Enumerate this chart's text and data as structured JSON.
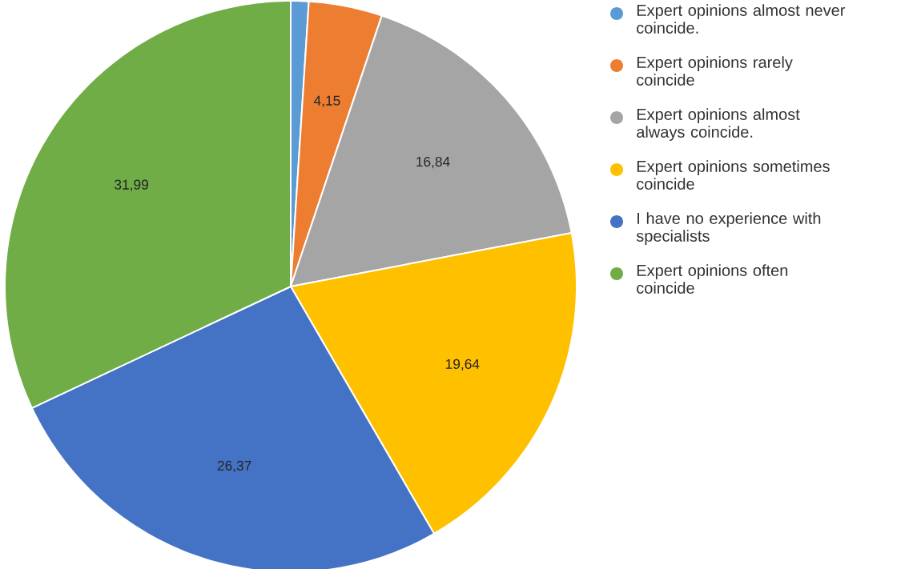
{
  "chart_data": {
    "type": "pie",
    "categories": [
      "Expert opinions almost never coincide.",
      "Expert opinions rarely coincide",
      "Expert opinions almost always coincide.",
      "Expert opinions sometimes coincide",
      "I have no experience with specialists",
      "Expert opinions often coincide"
    ],
    "values": [
      1.01,
      4.15,
      16.84,
      19.64,
      26.37,
      31.99
    ],
    "value_labels": [
      null,
      "4,15",
      "16,84",
      "19,64",
      "26,37",
      "31,99"
    ],
    "colors": [
      "#5b9bd5",
      "#ed7d31",
      "#a5a5a5",
      "#ffc000",
      "#4472c4",
      "#70ad47"
    ],
    "legend": "right"
  }
}
